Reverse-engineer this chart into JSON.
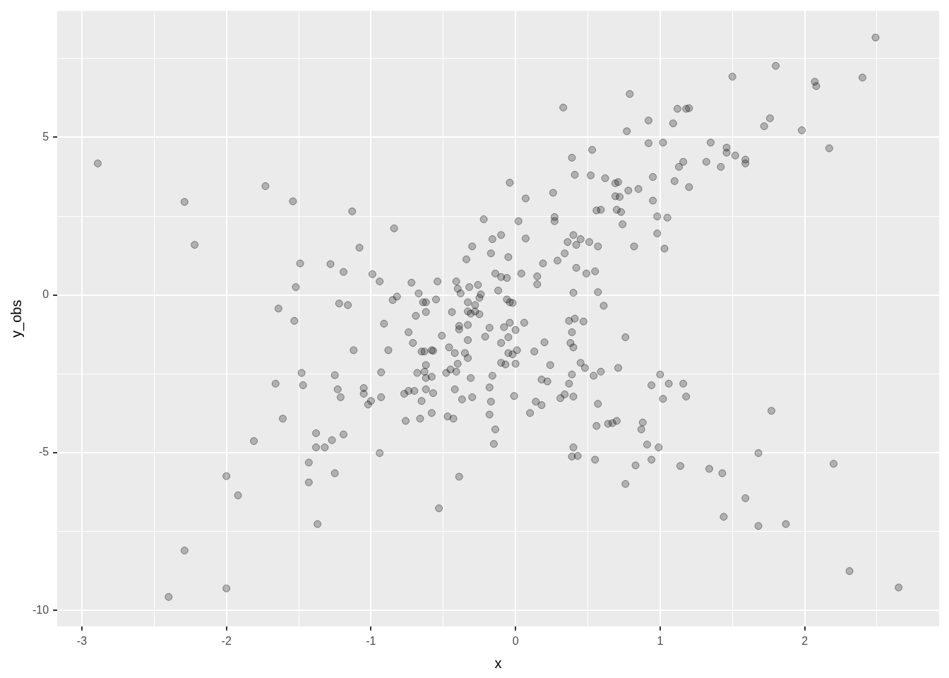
{
  "chart_data": {
    "type": "scatter",
    "xlabel": "x",
    "ylabel": "y_obs",
    "marker": "circle",
    "grid": true,
    "legend": false,
    "xlim": [
      -3.17,
      2.93
    ],
    "ylim": [
      -10.5,
      9.0
    ],
    "xticks": [
      -3,
      {
        "value": -2.5,
        "label": null
      },
      -2,
      {
        "value": -1.5,
        "label": null
      },
      -1,
      {
        "value": -0.5,
        "label": null
      },
      0,
      {
        "value": 0.5,
        "label": null
      },
      1,
      {
        "value": 1.5,
        "label": null
      },
      2,
      {
        "value": 2.5,
        "label": null
      }
    ],
    "yticks": [
      -10,
      {
        "value": -7.5,
        "label": null
      },
      -5,
      {
        "value": -2.5,
        "label": null
      },
      0,
      {
        "value": 2.5,
        "label": null
      },
      5,
      {
        "value": 7.5,
        "label": null
      }
    ],
    "series": [
      {
        "color": "#000000",
        "x": [
          -2.89,
          -2.29,
          -2.22,
          -2.29,
          -2.4,
          -2.0,
          -2.0,
          -1.92,
          -1.81,
          -1.73,
          -1.54,
          -1.64,
          -1.66,
          -1.61,
          -1.52,
          -1.53,
          -1.49,
          -1.48,
          -1.47,
          -1.43,
          -1.43,
          -1.38,
          -1.38,
          -1.37,
          -1.32,
          -1.28,
          -1.27,
          -1.25,
          -1.25,
          -1.23,
          -1.22,
          -1.21,
          -1.19,
          -1.19,
          -1.16,
          -1.13,
          -1.12,
          -1.08,
          -1.05,
          -1.05,
          -1.02,
          -1.0,
          -0.99,
          -0.94,
          -0.94,
          -0.93,
          -0.93,
          -0.91,
          -0.88,
          -0.85,
          -0.84,
          -0.82,
          -0.77,
          -0.76,
          -0.74,
          -0.74,
          -0.72,
          -0.71,
          -0.7,
          -0.69,
          -0.68,
          -0.67,
          -0.66,
          -0.65,
          -0.65,
          -0.64,
          -0.63,
          -0.63,
          -0.62,
          -0.62,
          -0.62,
          -0.62,
          -0.62,
          -0.58,
          -0.58,
          -0.58,
          -0.57,
          -0.57,
          -0.55,
          -0.54,
          -0.53,
          -0.51,
          -0.48,
          -0.47,
          -0.46,
          -0.45,
          -0.44,
          -0.43,
          -0.42,
          -0.42,
          -0.41,
          -0.41,
          -0.4,
          -0.39,
          -0.39,
          -0.39,
          -0.38,
          -0.4,
          -0.37,
          -0.35,
          -0.34,
          -0.33,
          -0.33,
          -0.33,
          -0.33,
          -0.33,
          -0.32,
          -0.3,
          -0.31,
          -0.31,
          -0.3,
          -0.28,
          -0.28,
          -0.26,
          -0.25,
          -0.25,
          -0.24,
          -0.22,
          -0.21,
          -0.18,
          -0.18,
          -0.18,
          -0.17,
          -0.17,
          -0.16,
          -0.16,
          -0.15,
          -0.14,
          -0.14,
          -0.12,
          -0.1,
          -0.1,
          -0.1,
          -0.1,
          -0.08,
          -0.07,
          -0.06,
          -0.06,
          -0.05,
          -0.05,
          -0.05,
          -0.04,
          -0.04,
          -0.04,
          -0.02,
          -0.02,
          -0.01,
          0.0,
          0.0,
          0.01,
          0.02,
          0.04,
          0.06,
          0.07,
          0.07,
          0.1,
          0.13,
          0.14,
          0.15,
          0.15,
          0.18,
          0.18,
          0.19,
          0.2,
          0.22,
          0.24,
          0.26,
          0.27,
          0.27,
          0.29,
          0.31,
          0.33,
          0.34,
          0.34,
          0.36,
          0.37,
          0.37,
          0.38,
          0.39,
          0.39,
          0.39,
          0.39,
          0.4,
          0.4,
          0.4,
          0.4,
          0.4,
          0.41,
          0.41,
          0.42,
          0.42,
          0.43,
          0.45,
          0.45,
          0.47,
          0.48,
          0.49,
          0.51,
          0.52,
          0.53,
          0.54,
          0.55,
          0.55,
          0.56,
          0.56,
          0.57,
          0.57,
          0.57,
          0.59,
          0.59,
          0.61,
          0.62,
          0.64,
          0.67,
          0.69,
          0.69,
          0.7,
          0.7,
          0.71,
          0.71,
          0.72,
          0.73,
          0.74,
          0.76,
          0.76,
          0.77,
          0.78,
          0.79,
          0.82,
          0.83,
          0.85,
          0.87,
          0.88,
          0.91,
          0.92,
          0.92,
          0.94,
          0.94,
          0.95,
          0.95,
          0.98,
          0.98,
          0.99,
          1.0,
          1.02,
          1.02,
          1.03,
          1.05,
          1.06,
          1.09,
          1.1,
          1.12,
          1.13,
          1.14,
          1.16,
          1.16,
          1.18,
          1.18,
          1.2,
          1.2,
          1.32,
          1.34,
          1.35,
          1.42,
          1.43,
          1.44,
          1.46,
          1.46,
          1.5,
          1.52,
          1.59,
          1.59,
          1.59,
          1.68,
          1.68,
          1.72,
          1.76,
          1.77,
          1.8,
          1.87,
          1.98,
          2.07,
          2.08,
          2.17,
          2.2,
          2.31,
          2.4,
          2.49,
          2.65
        ],
        "values": [
          4.17,
          2.95,
          1.59,
          -8.1,
          -9.57,
          -5.74,
          -9.3,
          -6.35,
          -4.63,
          3.45,
          2.97,
          -0.43,
          -2.81,
          -3.92,
          0.25,
          -0.82,
          1.0,
          -2.47,
          -2.86,
          -5.94,
          -5.31,
          -4.38,
          -4.83,
          -7.26,
          -4.83,
          0.98,
          -4.6,
          -2.54,
          -5.65,
          -2.99,
          -0.27,
          -3.24,
          0.73,
          -4.42,
          -0.32,
          2.65,
          -1.75,
          1.5,
          -2.95,
          -3.13,
          -3.47,
          -3.36,
          0.66,
          0.43,
          -5.01,
          -2.45,
          -3.24,
          -0.91,
          -1.75,
          -0.16,
          2.11,
          -0.05,
          -3.13,
          -3.99,
          -3.04,
          -1.18,
          0.39,
          -1.52,
          -3.04,
          -0.66,
          -2.47,
          0.05,
          -3.92,
          -1.79,
          -3.36,
          -0.23,
          -2.43,
          -1.79,
          -2.63,
          -2.99,
          -2.22,
          -0.54,
          -0.23,
          -1.75,
          -2.59,
          -3.74,
          -3.11,
          -1.77,
          -0.14,
          0.43,
          -6.76,
          -1.29,
          -2.47,
          -3.85,
          -1.66,
          -2.36,
          -0.54,
          -3.92,
          -1.84,
          -2.99,
          -2.43,
          0.43,
          0.2,
          -0.98,
          -1.09,
          -5.76,
          0.05,
          -2.18,
          -3.31,
          -1.84,
          1.13,
          -0.23,
          -0.52,
          -1.43,
          -0.95,
          -2.0,
          0.25,
          1.54,
          -0.59,
          -2.63,
          -3.24,
          -0.32,
          -0.52,
          0.32,
          -0.61,
          -0.09,
          0.02,
          2.4,
          -1.32,
          -1.04,
          -2.93,
          -3.79,
          1.32,
          -3.38,
          1.77,
          -2.56,
          -4.72,
          -4.26,
          0.68,
          0.14,
          1.9,
          0.57,
          -1.52,
          -2.15,
          -1.02,
          -2.2,
          0.54,
          -0.14,
          1.2,
          -1.34,
          -1.84,
          -0.23,
          -0.88,
          3.56,
          -0.25,
          -1.88,
          -3.2,
          -1.11,
          -2.18,
          -1.75,
          2.34,
          0.68,
          -0.88,
          3.06,
          1.79,
          -3.74,
          -1.79,
          -3.38,
          0.59,
          0.34,
          -3.49,
          -2.68,
          1.0,
          -1.5,
          -2.74,
          -2.22,
          3.24,
          2.47,
          2.34,
          1.09,
          -3.27,
          5.94,
          -3.15,
          1.32,
          1.68,
          -0.82,
          -2.81,
          -1.52,
          -1.18,
          4.35,
          -5.12,
          -2.52,
          1.9,
          -4.83,
          -1.66,
          0.07,
          -3.22,
          -0.75,
          3.81,
          0.86,
          1.59,
          -5.1,
          -2.15,
          1.77,
          -0.84,
          -2.31,
          0.68,
          1.68,
          3.79,
          4.6,
          -2.56,
          0.75,
          -5.22,
          -4.15,
          2.68,
          0.09,
          1.54,
          -3.45,
          -2.43,
          2.7,
          -0.34,
          3.7,
          -4.08,
          -4.06,
          3.54,
          3.13,
          2.7,
          -3.99,
          -2.31,
          3.58,
          3.11,
          2.63,
          2.24,
          -1.34,
          -5.99,
          5.19,
          3.31,
          6.37,
          1.54,
          -5.4,
          3.36,
          -4.26,
          -4.04,
          -4.74,
          5.53,
          4.81,
          -2.86,
          -5.22,
          3.74,
          2.99,
          1.95,
          2.49,
          -4.83,
          -2.52,
          -3.29,
          4.83,
          1.47,
          2.45,
          -2.81,
          5.44,
          3.61,
          5.9,
          4.06,
          -5.42,
          -2.81,
          4.22,
          5.9,
          -3.22,
          5.92,
          3.42,
          4.22,
          -5.51,
          4.83,
          4.06,
          -5.65,
          -7.03,
          4.67,
          4.51,
          6.92,
          4.42,
          4.29,
          4.17,
          -6.44,
          -5.01,
          -7.32,
          5.35,
          5.6,
          -3.67,
          7.26,
          -7.26,
          5.22,
          6.76,
          6.62,
          4.65,
          -5.35,
          -8.75,
          6.89,
          8.16,
          -9.27
        ]
      }
    ]
  }
}
